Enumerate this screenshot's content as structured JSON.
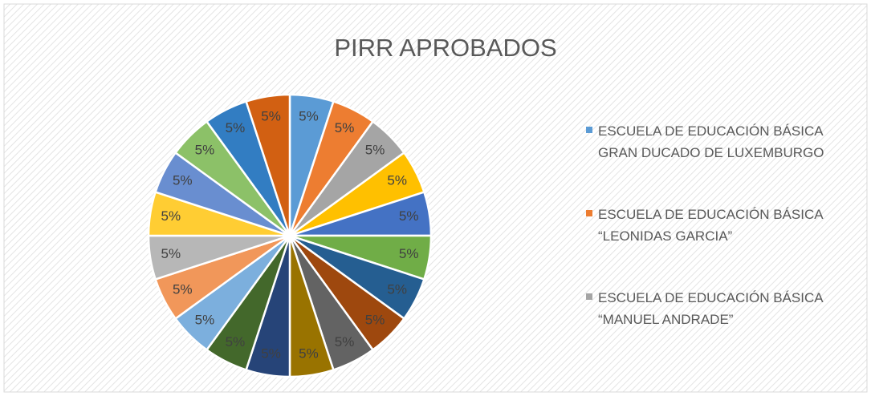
{
  "chart_data": {
    "type": "pie",
    "title": "PIRR APROBADOS",
    "categories": [
      "ESCUELA DE EDUCACIÓN BÁSICA GRAN DUCADO DE LUXEMBURGO",
      "ESCUELA DE EDUCACIÓN BÁSICA “LEONIDAS GARCIA”",
      "ESCUELA DE EDUCACIÓN BÁSICA “MANUEL ANDRADE”",
      null,
      null,
      null,
      null,
      null,
      null,
      null,
      null,
      null,
      null,
      null,
      null,
      null,
      null,
      null,
      null,
      null
    ],
    "values": [
      5,
      5,
      5,
      5,
      5,
      5,
      5,
      5,
      5,
      5,
      5,
      5,
      5,
      5,
      5,
      5,
      5,
      5,
      5,
      5
    ],
    "value_labels": [
      "5%",
      "5%",
      "5%",
      "5%",
      "5%",
      "5%",
      "5%",
      "5%",
      "5%",
      "5%",
      "5%",
      "5%",
      "5%",
      "5%",
      "5%",
      "5%",
      "5%",
      "5%",
      "5%",
      "5%"
    ],
    "colors": [
      "#5b9bd5",
      "#ed7d31",
      "#a5a5a5",
      "#ffc000",
      "#4472c4",
      "#70ad47",
      "#255e91",
      "#9e480e",
      "#636363",
      "#997300",
      "#264478",
      "#43682b",
      "#7cafdd",
      "#f1975a",
      "#b7b7b7",
      "#ffcd33",
      "#698ed0",
      "#8cc168",
      "#327dc2",
      "#d26012"
    ],
    "legend": "right"
  }
}
